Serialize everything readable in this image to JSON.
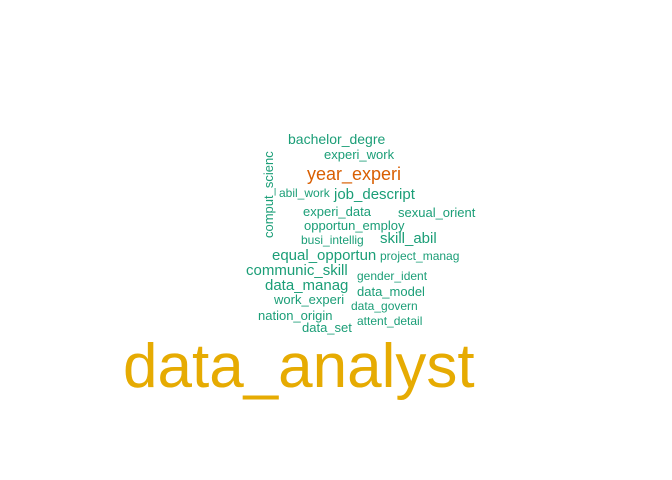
{
  "words": {
    "data_analyst": "data_analyst",
    "year_experi": "year_experi",
    "bachelor_degre": "bachelor_degre",
    "experi_work": "experi_work",
    "comput_scienc": "comput_scienc",
    "abil_work": "abil_work",
    "job_descript": "job_descript",
    "experi_data": "experi_data",
    "sexual_orient": "sexual_orient",
    "opportun_employ": "opportun_employ",
    "busi_intellig": "busi_intellig",
    "skill_abil": "skill_abil",
    "equal_opportun": "equal_opportun",
    "project_manag": "project_manag",
    "communic_skill": "communic_skill",
    "gender_ident": "gender_ident",
    "data_manag": "data_manag",
    "data_model": "data_model",
    "work_experi": "work_experi",
    "data_govern": "data_govern",
    "nation_origin": "nation_origin",
    "attent_detail": "attent_detail",
    "data_set": "data_set"
  },
  "colors": {
    "largest": "#e6ab02",
    "second": "#d95f02",
    "rest": "#1b9e77",
    "background": "#ffffff"
  }
}
